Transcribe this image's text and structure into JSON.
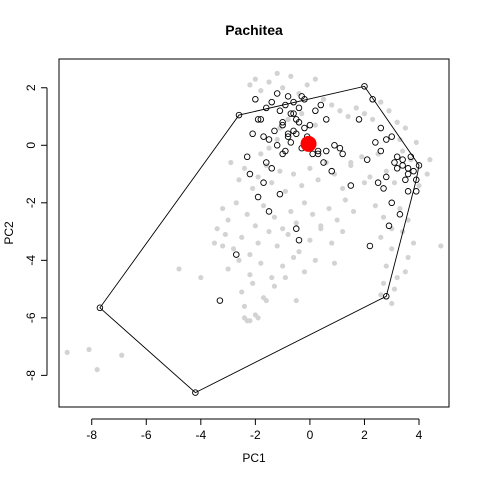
{
  "chart_data": {
    "type": "scatter",
    "title": "Pachitea",
    "xlabel": "PC1",
    "ylabel": "PC2",
    "xlim": [
      -9.2,
      5.1
    ],
    "ylim": [
      -9.1,
      3.0
    ],
    "x_ticks": [
      -8,
      -6,
      -4,
      -2,
      0,
      2,
      4
    ],
    "y_ticks": [
      -8,
      -6,
      -4,
      -2,
      0,
      2
    ],
    "grid": false,
    "legend": "none",
    "colors": {
      "background_points": "#d3d3d3",
      "highlighted_points": "#000000",
      "centroid": "#ff0000",
      "hull": "#000000"
    },
    "hull": {
      "x": [
        -7.7,
        -4.2,
        2.8,
        3.9,
        4.0,
        2.0,
        -2.6
      ],
      "y": [
        -5.65,
        -8.6,
        -5.25,
        -1.2,
        -0.7,
        2.05,
        1.05
      ]
    },
    "centroid": {
      "x": -0.05,
      "y": 0.05
    },
    "highlighted_points": {
      "x": [
        -7.7,
        -4.2,
        2.8,
        3.9,
        4.0,
        2.0,
        -2.6,
        -3.3,
        -2.7,
        -2.0,
        -1.9,
        -1.6,
        -1.4,
        -1.2,
        -1.1,
        -1.0,
        -0.9,
        -0.8,
        -0.7,
        -0.6,
        -0.5,
        -0.4,
        -0.3,
        -0.2,
        -0.1,
        0.0,
        0.2,
        0.4,
        0.6,
        -1.5,
        -1.3,
        -0.9,
        -0.7,
        -0.5,
        -0.3,
        -0.6,
        -0.8,
        -1.0,
        -1.2,
        -0.4,
        -0.2,
        0.1,
        0.3,
        -2.3,
        -2.1,
        -1.8,
        -1.7,
        -1.5,
        -1.0,
        -0.5,
        0.5,
        0.8,
        1.2,
        1.5,
        1.8,
        2.3,
        2.6,
        2.8,
        3.0,
        3.1,
        3.2,
        3.4,
        3.5,
        3.6,
        3.7,
        3.8,
        3.3,
        2.9,
        2.7,
        3.0,
        3.4,
        3.6,
        2.4,
        2.8,
        3.2,
        -1.6,
        -1.9,
        -0.4,
        0.9,
        1.1,
        -2.2,
        -1.4,
        -1.1,
        -0.8,
        0.3,
        0.6,
        2.2,
        2.5,
        3.9,
        3.6,
        -0.6,
        -1.7,
        2.1,
        2.6
      ],
      "y": [
        -5.65,
        -8.6,
        -5.25,
        -1.2,
        -0.7,
        2.05,
        1.05,
        -5.4,
        -3.8,
        1.6,
        0.9,
        1.3,
        1.5,
        1.8,
        1.2,
        0.8,
        1.4,
        1.7,
        1.1,
        0.5,
        0.9,
        1.3,
        1.7,
        0.6,
        0.3,
        0.7,
        1.2,
        1.4,
        0.9,
        0.2,
        0.5,
        -0.2,
        0.1,
        0.4,
        -0.1,
        1.5,
        0.3,
        0.7,
        0.0,
        0.8,
        1.6,
        -0.3,
        -0.2,
        -0.4,
        0.4,
        0.9,
        -1.3,
        -2.3,
        -0.3,
        -2.9,
        -0.6,
        -0.9,
        -0.3,
        -1.4,
        0.9,
        1.6,
        0.6,
        -1.1,
        0.3,
        -0.6,
        -0.4,
        -0.7,
        -1.2,
        -1.6,
        -0.4,
        -0.9,
        -2.4,
        -2.8,
        -1.5,
        -2.0,
        -0.5,
        -1.0,
        0.1,
        0.2,
        -0.8,
        -0.6,
        -1.8,
        -3.3,
        0.0,
        -0.1,
        -1.0,
        -0.8,
        -1.7,
        0.4,
        -0.3,
        -0.2,
        -3.5,
        -1.3,
        -1.6,
        -0.8,
        1.1,
        0.3,
        -0.5,
        -0.2
      ]
    },
    "background_points": {
      "x": [
        -8.9,
        -8.1,
        -7.8,
        -6.9,
        -4.8,
        -4.0,
        -2.2,
        -2.0,
        -1.8,
        -1.5,
        -1.2,
        -1.0,
        -0.7,
        -0.4,
        -0.1,
        0.2,
        0.5,
        0.8,
        1.1,
        1.4,
        1.7,
        2.0,
        2.3,
        2.6,
        2.9,
        3.2,
        3.5,
        -2.9,
        -2.6,
        -2.4,
        -2.1,
        -1.9,
        -1.6,
        -1.4,
        -1.1,
        -0.9,
        -0.6,
        -0.3,
        0.0,
        0.3,
        0.6,
        0.9,
        1.2,
        1.5,
        1.9,
        2.2,
        2.5,
        2.8,
        3.1,
        3.4,
        3.7,
        4.0,
        4.3,
        -3.2,
        -3.0,
        -2.7,
        -2.3,
        -2.0,
        -1.7,
        -1.3,
        -1.0,
        -0.7,
        -0.5,
        -0.2,
        0.1,
        0.4,
        0.7,
        1.0,
        1.3,
        1.6,
        2.4,
        2.7,
        3.0,
        3.3,
        3.6,
        -3.5,
        -3.1,
        -2.8,
        -2.5,
        -2.2,
        -1.9,
        -1.5,
        -1.2,
        -0.8,
        -0.4,
        0.0,
        0.4,
        0.8,
        1.2,
        2.6,
        3.0,
        3.4,
        3.8,
        -3.0,
        -2.6,
        -2.2,
        -1.8,
        -1.4,
        -1.0,
        -0.6,
        -0.2,
        0.2,
        2.8,
        3.2,
        3.6,
        -2.5,
        -2.1,
        -1.7,
        -1.3,
        -0.9,
        2.7,
        3.1,
        3.5,
        -2.4,
        -2.0,
        -1.6,
        2.6,
        3.0,
        -2.3,
        -1.9,
        -0.5,
        0.9,
        4.8,
        -2.4,
        -2.2,
        -3.4,
        -3.2,
        -1.1,
        -0.8,
        -0.3,
        0.2,
        -1.8,
        -1.5,
        -1.2,
        1.5,
        2.0,
        3.3,
        3.9,
        4.4
      ],
      "y": [
        -7.2,
        -7.1,
        -7.8,
        -7.3,
        -4.3,
        -4.6,
        2.1,
        2.3,
        1.9,
        2.2,
        2.5,
        2.0,
        2.4,
        1.8,
        2.1,
        2.3,
        1.6,
        1.4,
        1.2,
        1.0,
        1.3,
        1.1,
        0.9,
        1.5,
        1.2,
        0.8,
        0.6,
        -0.6,
        -1.2,
        -0.8,
        -1.5,
        -1.1,
        -0.7,
        -1.3,
        -0.9,
        -1.6,
        -1.0,
        -1.4,
        -0.8,
        -1.2,
        -0.6,
        -1.0,
        -1.5,
        -0.7,
        -0.4,
        -1.1,
        -0.3,
        -0.9,
        -1.3,
        -0.2,
        -0.5,
        -1.4,
        -1.0,
        -2.2,
        -2.6,
        -2.0,
        -2.4,
        -2.8,
        -2.1,
        -2.5,
        -2.9,
        -2.3,
        -2.7,
        -2.0,
        -2.4,
        -2.8,
        -2.2,
        -2.6,
        -1.9,
        -2.3,
        -2.1,
        -2.5,
        -2.9,
        -2.2,
        -2.6,
        -3.4,
        -3.1,
        -3.6,
        -3.2,
        -3.8,
        -3.4,
        -3.0,
        -3.5,
        -3.1,
        -3.7,
        -3.3,
        -2.9,
        -3.4,
        -3.0,
        -3.2,
        -3.6,
        -3.0,
        -3.4,
        -4.3,
        -4.0,
        -4.5,
        -4.1,
        -4.6,
        -4.2,
        -3.9,
        -4.4,
        -4.0,
        -4.2,
        -4.6,
        -3.9,
        -5.1,
        -4.8,
        -5.3,
        -4.9,
        -4.6,
        -4.8,
        -5.0,
        -4.4,
        -5.6,
        -5.9,
        -5.4,
        -5.2,
        -5.5,
        -6.1,
        -6.0,
        -5.4,
        -4.1,
        -3.5,
        -6.0,
        -6.1,
        -2.9,
        -3.5,
        0.6,
        0.9,
        1.1,
        0.7,
        -0.3,
        -0.1,
        0.2,
        -0.6,
        -1.3,
        0.2,
        0.1,
        -0.5
      ]
    }
  }
}
